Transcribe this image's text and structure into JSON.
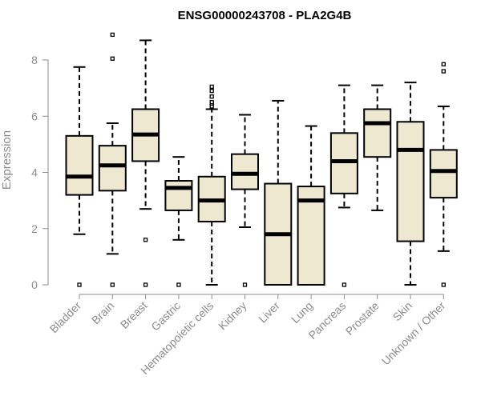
{
  "chart_data": {
    "type": "boxplot",
    "title": "ENSG00000243708 - PLA2G4B",
    "xlabel": "",
    "ylabel": "Expression",
    "ylim": [
      0,
      9
    ],
    "yticks": [
      0,
      2,
      4,
      6,
      8
    ],
    "grid": false,
    "box_fill": "#efe8d0",
    "categories": [
      "Bladder",
      "Brain",
      "Breast",
      "Gastric",
      "Hematopoietic cells",
      "Kidney",
      "Liver",
      "Lung",
      "Pancreas",
      "Prostate",
      "Skin",
      "Unknown / Other"
    ],
    "series": [
      {
        "category": "Bladder",
        "whisker_low": 1.8,
        "q1": 3.2,
        "median": 3.85,
        "q3": 5.3,
        "whisker_high": 7.75,
        "outliers": [
          0
        ]
      },
      {
        "category": "Brain",
        "whisker_low": 1.1,
        "q1": 3.35,
        "median": 4.25,
        "q3": 4.95,
        "whisker_high": 5.75,
        "outliers": [
          0,
          8.05,
          8.9
        ]
      },
      {
        "category": "Breast",
        "whisker_low": 2.7,
        "q1": 4.4,
        "median": 5.35,
        "q3": 6.25,
        "whisker_high": 8.7,
        "outliers": [
          0,
          1.6
        ]
      },
      {
        "category": "Gastric",
        "whisker_low": 1.6,
        "q1": 2.65,
        "median": 3.45,
        "q3": 3.7,
        "whisker_high": 4.55,
        "outliers": [
          0
        ]
      },
      {
        "category": "Hematopoietic cells",
        "whisker_low": 0,
        "q1": 2.25,
        "median": 3.0,
        "q3": 3.85,
        "whisker_high": 6.25,
        "outliers": [
          6.35,
          6.45,
          6.5,
          6.7,
          6.9,
          7.05
        ]
      },
      {
        "category": "Kidney",
        "whisker_low": 2.05,
        "q1": 3.4,
        "median": 3.95,
        "q3": 4.65,
        "whisker_high": 6.05,
        "outliers": [
          0
        ]
      },
      {
        "category": "Liver",
        "whisker_low": 0,
        "q1": 0,
        "median": 1.8,
        "q3": 3.6,
        "whisker_high": 6.55,
        "outliers": []
      },
      {
        "category": "Lung",
        "whisker_low": 0,
        "q1": 0,
        "median": 3.0,
        "q3": 3.5,
        "whisker_high": 5.65,
        "outliers": []
      },
      {
        "category": "Pancreas",
        "whisker_low": 2.75,
        "q1": 3.25,
        "median": 4.4,
        "q3": 5.4,
        "whisker_high": 7.1,
        "outliers": [
          0
        ]
      },
      {
        "category": "Prostate",
        "whisker_low": 2.65,
        "q1": 4.55,
        "median": 5.75,
        "q3": 6.25,
        "whisker_high": 7.1,
        "outliers": []
      },
      {
        "category": "Skin",
        "whisker_low": 0,
        "q1": 1.55,
        "median": 4.8,
        "q3": 5.8,
        "whisker_high": 7.2,
        "outliers": []
      },
      {
        "category": "Unknown / Other",
        "whisker_low": 1.2,
        "q1": 3.1,
        "median": 4.05,
        "q3": 4.8,
        "whisker_high": 6.35,
        "outliers": [
          0,
          7.6,
          7.85
        ]
      }
    ]
  }
}
